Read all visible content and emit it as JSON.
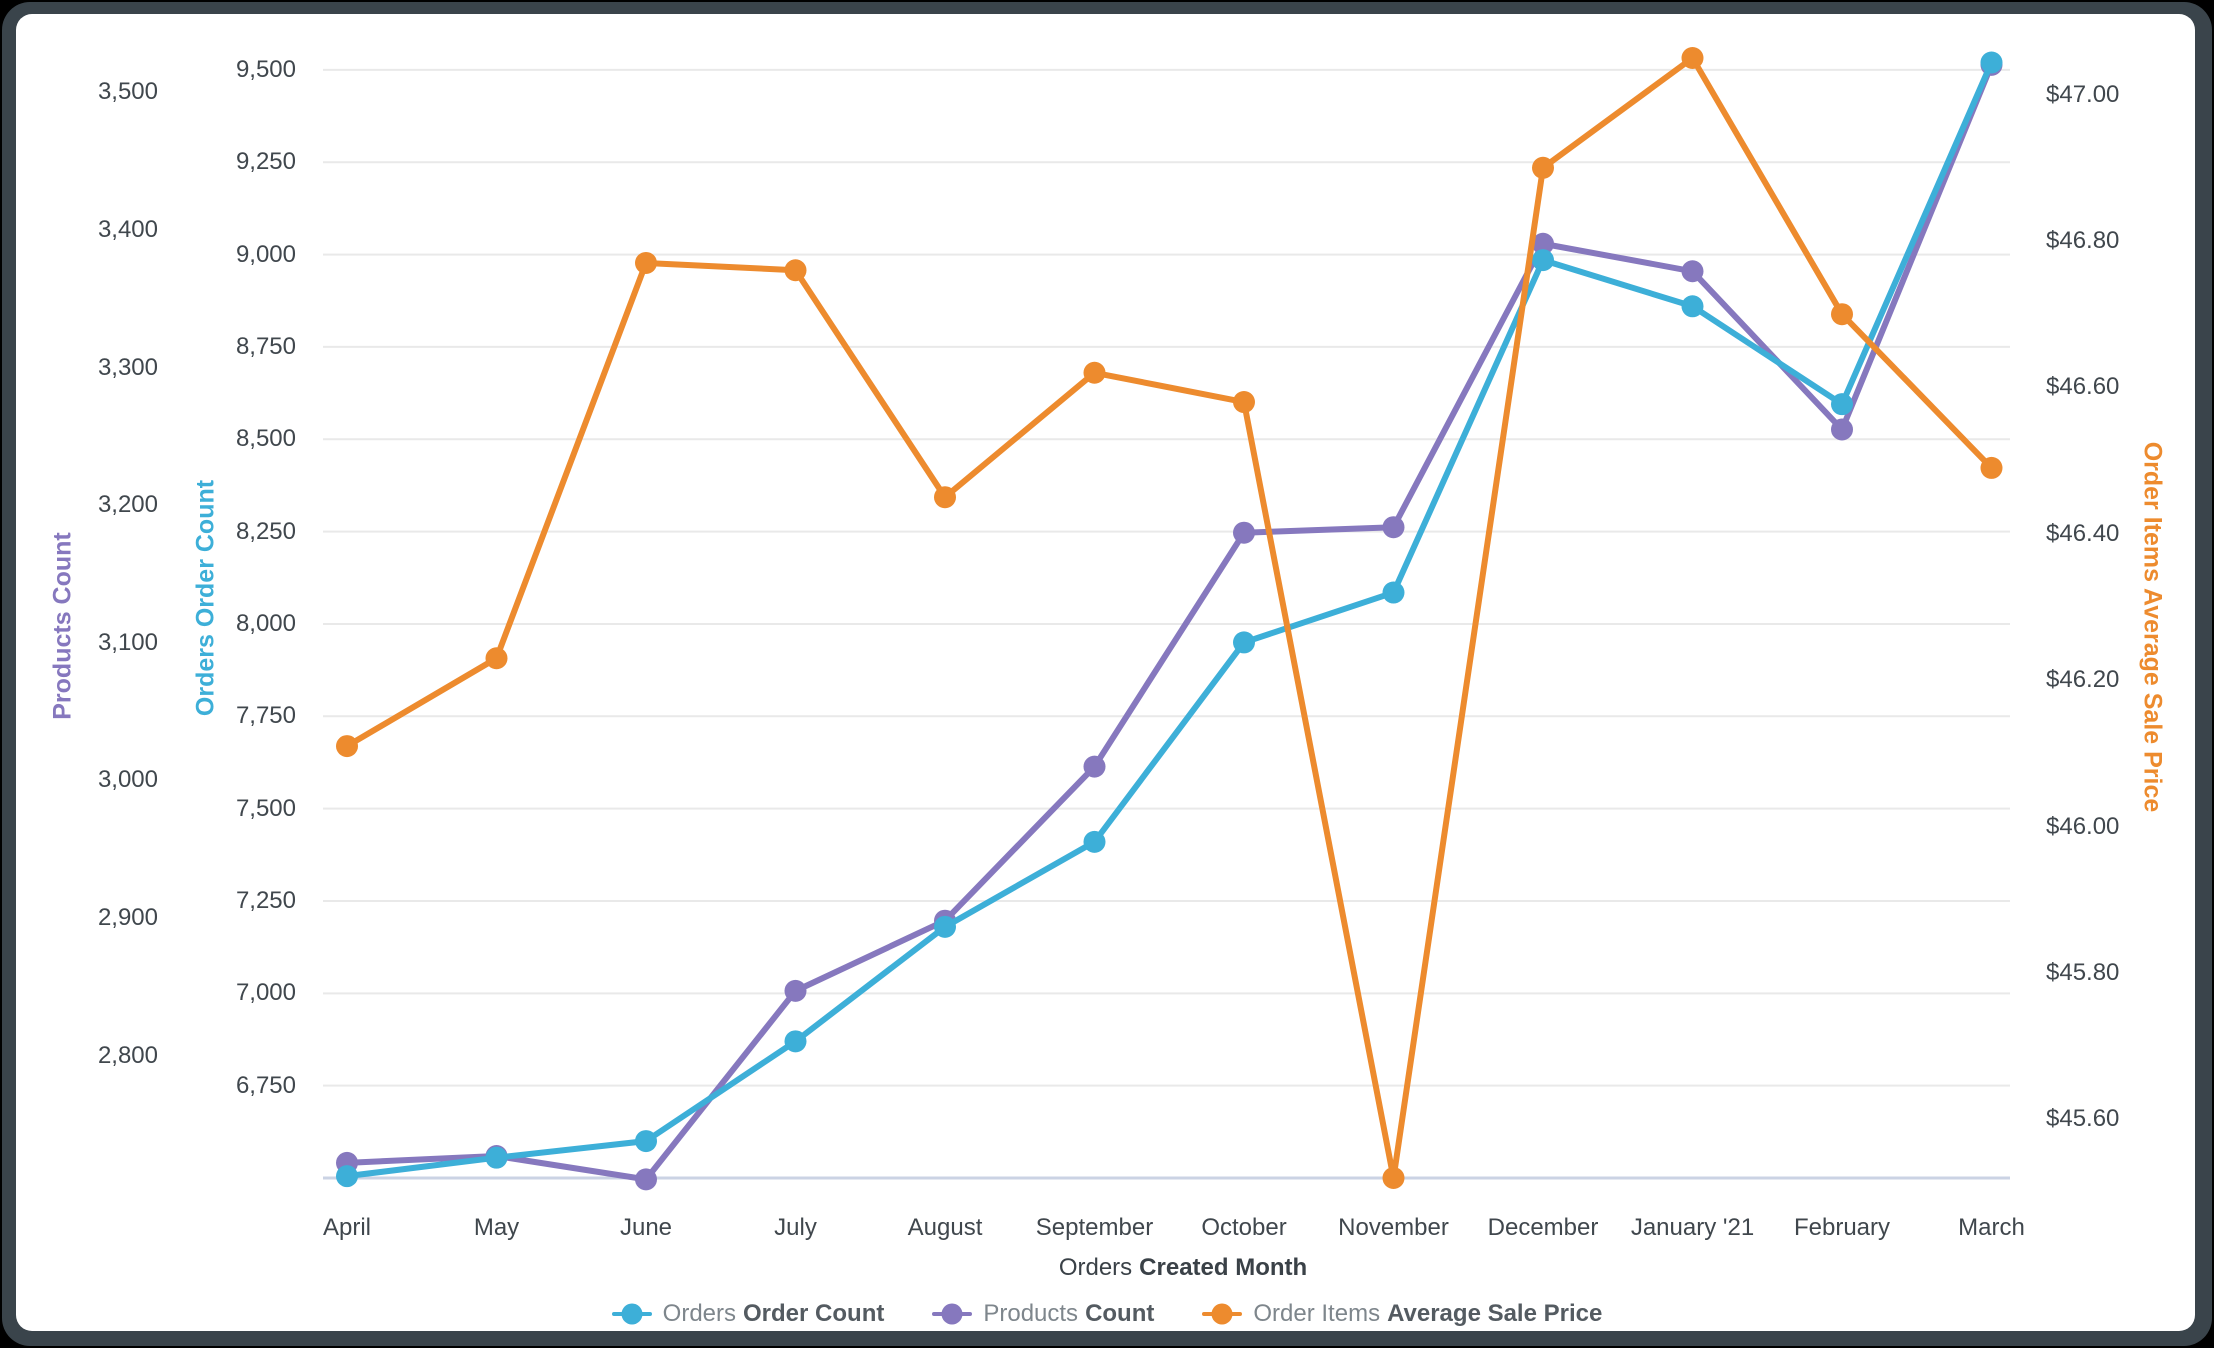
{
  "frame": {
    "outer_background": "#000000",
    "panel_color": "#3A444B",
    "card_color": "#FFFFFF",
    "gridline_color": "#E9E9E9",
    "baseline_color": "#CBD3E4",
    "tick_text_color": "#40474D"
  },
  "chart_data": {
    "type": "line",
    "categories": [
      "April",
      "May",
      "June",
      "July",
      "August",
      "September",
      "October",
      "November",
      "December",
      "January '21",
      "February",
      "March"
    ],
    "x_title": {
      "prefix": "Orders",
      "bold": "Created Month"
    },
    "legend_position": "bottom",
    "grid": true,
    "series": [
      {
        "id": "orders",
        "name_prefix": "Orders",
        "name_bold": "Order Count",
        "color": "#3DAFD8",
        "axis": "orders",
        "values": [
          6505,
          6555,
          6600,
          6870,
          7180,
          7410,
          7950,
          8085,
          8985,
          8860,
          8595,
          9520
        ]
      },
      {
        "id": "products",
        "name_prefix": "Products",
        "name_bold": "Count",
        "color": "#8678BE",
        "axis": "products",
        "values": [
          2722,
          2727,
          2710,
          2847,
          2898,
          3010,
          3180,
          3184,
          3390,
          3370,
          3255,
          3520
        ]
      },
      {
        "id": "price",
        "name_prefix": "Order Items",
        "name_bold": "Average Sale Price",
        "color": "#ED8B2E",
        "axis": "price",
        "values": [
          46.11,
          46.23,
          46.77,
          46.76,
          46.45,
          46.62,
          46.58,
          45.52,
          46.9,
          47.05,
          46.7,
          46.49
        ]
      }
    ],
    "axes": {
      "products": {
        "title": "Products Count",
        "color": "#8678BE",
        "min": 2711,
        "max": 3533,
        "ticks": [
          {
            "label": "3,500",
            "value": 3500
          },
          {
            "label": "3,400",
            "value": 3400
          },
          {
            "label": "3,300",
            "value": 3300
          },
          {
            "label": "3,200",
            "value": 3200
          },
          {
            "label": "3,100",
            "value": 3100
          },
          {
            "label": "3,000",
            "value": 3000
          },
          {
            "label": "2,900",
            "value": 2900
          },
          {
            "label": "2,800",
            "value": 2800
          }
        ]
      },
      "orders": {
        "title": "Orders Order Count",
        "color": "#3DAFD8",
        "min": 6500,
        "max": 9562,
        "ticks": [
          {
            "label": "9,500",
            "value": 9500
          },
          {
            "label": "9,250",
            "value": 9250
          },
          {
            "label": "9,000",
            "value": 9000
          },
          {
            "label": "8,750",
            "value": 8750
          },
          {
            "label": "8,500",
            "value": 8500
          },
          {
            "label": "8,250",
            "value": 8250
          },
          {
            "label": "8,000",
            "value": 8000
          },
          {
            "label": "7,750",
            "value": 7750
          },
          {
            "label": "7,500",
            "value": 7500
          },
          {
            "label": "7,250",
            "value": 7250
          },
          {
            "label": "7,000",
            "value": 7000
          },
          {
            "label": "6,750",
            "value": 6750
          }
        ]
      },
      "price": {
        "title": "Order Items Average Sale Price",
        "color": "#ED8B2E",
        "min": 45.52,
        "max": 47.065,
        "ticks": [
          {
            "label": "$47.00",
            "value": 47.0
          },
          {
            "label": "$46.80",
            "value": 46.8
          },
          {
            "label": "$46.60",
            "value": 46.6
          },
          {
            "label": "$46.40",
            "value": 46.4
          },
          {
            "label": "$46.20",
            "value": 46.2
          },
          {
            "label": "$46.00",
            "value": 46.0
          },
          {
            "label": "$45.80",
            "value": 45.8
          },
          {
            "label": "$45.60",
            "value": 45.6
          }
        ]
      }
    }
  }
}
